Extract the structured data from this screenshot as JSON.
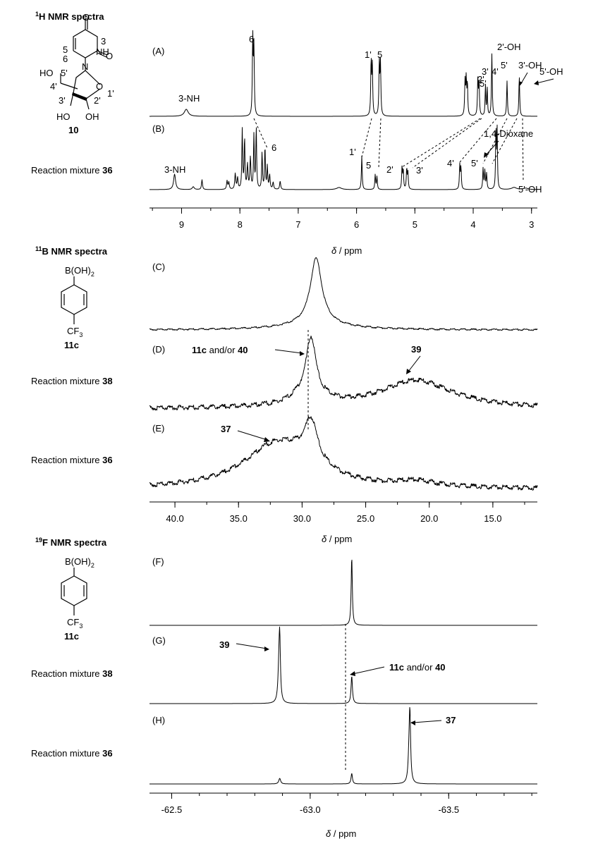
{
  "sections": [
    {
      "title_sup": "1",
      "title_el": "H",
      "title_rest": " NMR spectra",
      "compound_label": "10"
    },
    {
      "title_sup": "11",
      "title_el": "B",
      "title_rest": " NMR spectra",
      "compound_label": "11c"
    },
    {
      "title_sup": "19",
      "title_el": "F",
      "title_rest": " NMR spectra",
      "compound_label": "11c"
    }
  ],
  "structure_text": {
    "boronic": "B(OH)",
    "boronic_sub": "2",
    "cf": "CF",
    "cf_sub": "3",
    "uridine": {
      "o1": "O",
      "o2": "O",
      "nh": "NH",
      "n": "N",
      "o_ring": "O",
      "ho": "HO",
      "oh3": "HO",
      "oh2": "OH",
      "c5": "5",
      "c6": "6",
      "n3": "3",
      "c5p": "5'",
      "c4p": "4'",
      "c3p": "3'",
      "c2p": "2'",
      "c1p": "1'"
    }
  },
  "mixtures": [
    {
      "text": "Reaction mixture ",
      "num": "36"
    },
    {
      "text": "Reaction mixture ",
      "num": "38"
    },
    {
      "text": "Reaction mixture ",
      "num": "36"
    },
    {
      "text": "Reaction mixture ",
      "num": "38"
    },
    {
      "text": "Reaction mixture ",
      "num": "36"
    }
  ],
  "axis_label": {
    "delta": "δ",
    "unit": " / ppm"
  },
  "chart_data": [
    {
      "type": "line",
      "title": "1H NMR spectra",
      "xlabel": "δ / ppm",
      "xlim": [
        9.55,
        2.9
      ],
      "xticks": [
        "9",
        "8",
        "7",
        "6",
        "5",
        "4",
        "3"
      ],
      "xtick_values": [
        9,
        8,
        7,
        6,
        5,
        4,
        3
      ],
      "series": [
        {
          "name": "(A)",
          "peaks_ppm": [
            8.92,
            7.78,
            5.75,
            5.6,
            4.13,
            3.92,
            3.78,
            3.68,
            3.42,
            3.2
          ]
        },
        {
          "name": "(B)",
          "peaks_ppm": [
            9.12,
            8.8,
            8.65,
            8.2,
            8.05,
            7.95,
            7.9,
            7.78,
            7.73,
            7.6,
            7.55,
            7.5,
            7.4,
            7.3,
            5.9,
            5.68,
            5.22,
            5.13,
            4.22,
            3.82,
            3.78,
            3.6,
            3.2
          ]
        }
      ],
      "annotations": {
        "A": [
          "3-NH",
          "6",
          "1'",
          "5",
          "2'",
          "3'",
          "4'",
          "5'",
          "2'-OH",
          "5'",
          "3'-OH",
          "5'-OH"
        ],
        "B": [
          "3-NH",
          "6",
          "1'",
          "5",
          "2'",
          "3'",
          "4'",
          "5'",
          "1,4-Dioxane",
          "5'-OH"
        ]
      }
    },
    {
      "type": "line",
      "title": "11B NMR spectra",
      "xlabel": "δ / ppm",
      "xlim": [
        42.0,
        11.5
      ],
      "xticks": [
        "40.0",
        "35.0",
        "30.0",
        "25.0",
        "20.0",
        "15.0"
      ],
      "xtick_values": [
        40,
        35,
        30,
        25,
        20,
        15
      ],
      "series": [
        {
          "name": "(C)",
          "peaks_ppm": [
            28.9
          ]
        },
        {
          "name": "(D)",
          "peaks_ppm": [
            29.3,
            21.0
          ]
        },
        {
          "name": "(E)",
          "peaks_ppm": [
            32.0,
            29.3,
            21.0
          ]
        }
      ],
      "annotations": {
        "D": [
          "11c and/or 40",
          "39"
        ],
        "E": [
          "37"
        ]
      }
    },
    {
      "type": "line",
      "title": "19F NMR spectra",
      "xlabel": "δ / ppm",
      "xlim": [
        -62.42,
        -63.82
      ],
      "xticks": [
        "-62.5",
        "-63.0",
        "-63.5"
      ],
      "xtick_values": [
        -62.5,
        -63.0,
        -63.5
      ],
      "series": [
        {
          "name": "(F)",
          "peaks_ppm": [
            -63.15
          ]
        },
        {
          "name": "(G)",
          "peaks_ppm": [
            -62.89,
            -63.15
          ]
        },
        {
          "name": "(H)",
          "peaks_ppm": [
            -62.89,
            -63.15,
            -63.36
          ]
        }
      ],
      "annotations": {
        "G": [
          "39",
          "11c and/or 40"
        ],
        "H": [
          "37"
        ]
      }
    }
  ]
}
